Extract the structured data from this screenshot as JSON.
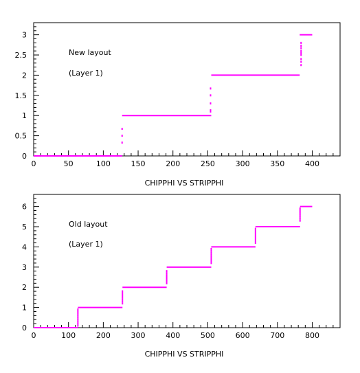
{
  "chart_data": [
    {
      "type": "scatter",
      "xlabel": "CHIPPHI VS STRIPPHI",
      "annotations": [
        "New layout",
        "(Layer 1)"
      ],
      "xlim": [
        0,
        440
      ],
      "ylim": [
        0,
        3.3
      ],
      "xticks": [
        0,
        50,
        100,
        150,
        200,
        250,
        300,
        350,
        400
      ],
      "yticks": [
        0,
        0.5,
        1,
        1.5,
        2,
        2.5,
        3
      ],
      "ytick_labels": [
        "0",
        "0.5",
        "1",
        "1.5",
        "2",
        "2.5",
        "3"
      ],
      "color": "#ff00ff",
      "steps": [
        {
          "x0": 0,
          "x1": 127,
          "y": 0
        },
        {
          "x0": 127,
          "x1": 255,
          "y": 1
        },
        {
          "x0": 255,
          "x1": 382,
          "y": 2
        },
        {
          "x0": 382,
          "x1": 400,
          "y": 3
        }
      ],
      "transitions": [
        {
          "x": 127,
          "points": [
            0.33,
            0.5,
            0.67
          ]
        },
        {
          "x": 254,
          "points": [
            1.1,
            1.13,
            1.3,
            1.5,
            1.67
          ]
        },
        {
          "x": 384,
          "points": [
            2.25,
            2.33,
            2.4,
            2.5,
            2.55,
            2.6,
            2.67,
            2.73,
            2.8
          ]
        }
      ]
    },
    {
      "type": "scatter",
      "xlabel": "CHIPPHI VS STRIPPHI",
      "annotations": [
        "Old layout",
        "(Layer 1)"
      ],
      "xlim": [
        0,
        880
      ],
      "ylim": [
        0,
        6.6
      ],
      "xticks": [
        0,
        100,
        200,
        300,
        400,
        500,
        600,
        700,
        800
      ],
      "yticks": [
        0,
        1,
        2,
        3,
        4,
        5,
        6
      ],
      "ytick_labels": [
        "0",
        "1",
        "2",
        "3",
        "4",
        "5",
        "6"
      ],
      "color": "#ff00ff",
      "steps": [
        {
          "x0": 0,
          "x1": 127,
          "y": 0
        },
        {
          "x0": 127,
          "x1": 255,
          "y": 1
        },
        {
          "x0": 255,
          "x1": 382,
          "y": 2
        },
        {
          "x0": 382,
          "x1": 510,
          "y": 3
        },
        {
          "x0": 510,
          "x1": 637,
          "y": 4
        },
        {
          "x0": 637,
          "x1": 765,
          "y": 5
        },
        {
          "x0": 765,
          "x1": 800,
          "y": 6
        }
      ],
      "transitions": [
        {
          "x": 127,
          "points": [
            0.1,
            0.2,
            0.3,
            0.4,
            0.5,
            0.6,
            0.7,
            0.8,
            0.9
          ]
        },
        {
          "x": 255,
          "points": [
            1.2,
            1.3,
            1.4,
            1.5,
            1.6,
            1.7,
            1.8
          ]
        },
        {
          "x": 382,
          "points": [
            2.2,
            2.3,
            2.4,
            2.5,
            2.6,
            2.7,
            2.8
          ]
        },
        {
          "x": 510,
          "points": [
            3.2,
            3.3,
            3.4,
            3.5,
            3.6,
            3.7,
            3.8,
            3.9
          ]
        },
        {
          "x": 637,
          "points": [
            4.2,
            4.3,
            4.4,
            4.5,
            4.6,
            4.7,
            4.8,
            4.9
          ]
        },
        {
          "x": 765,
          "points": [
            5.3,
            5.4,
            5.5,
            5.6,
            5.7,
            5.8,
            5.9
          ]
        }
      ]
    }
  ]
}
